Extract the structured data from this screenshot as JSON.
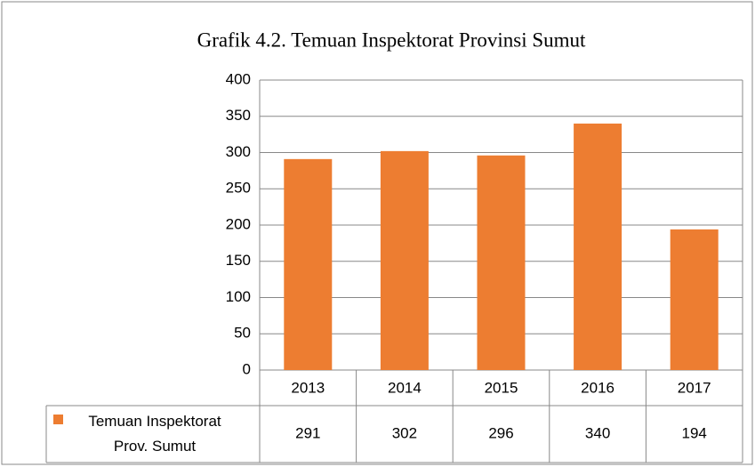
{
  "chart_data": {
    "type": "bar",
    "title": "Grafik 4.2. Temuan Inspektorat Provinsi Sumut",
    "categories": [
      "2013",
      "2014",
      "2015",
      "2016",
      "2017"
    ],
    "series": [
      {
        "name": "Temuan Inspektorat Prov. Sumut",
        "color": "#ed7d31",
        "values": [
          291,
          302,
          296,
          340,
          194
        ]
      }
    ],
    "ylim": [
      0,
      400
    ],
    "yticks": [
      0,
      50,
      100,
      150,
      200,
      250,
      300,
      350,
      400
    ],
    "grid": true,
    "data_table": true
  }
}
